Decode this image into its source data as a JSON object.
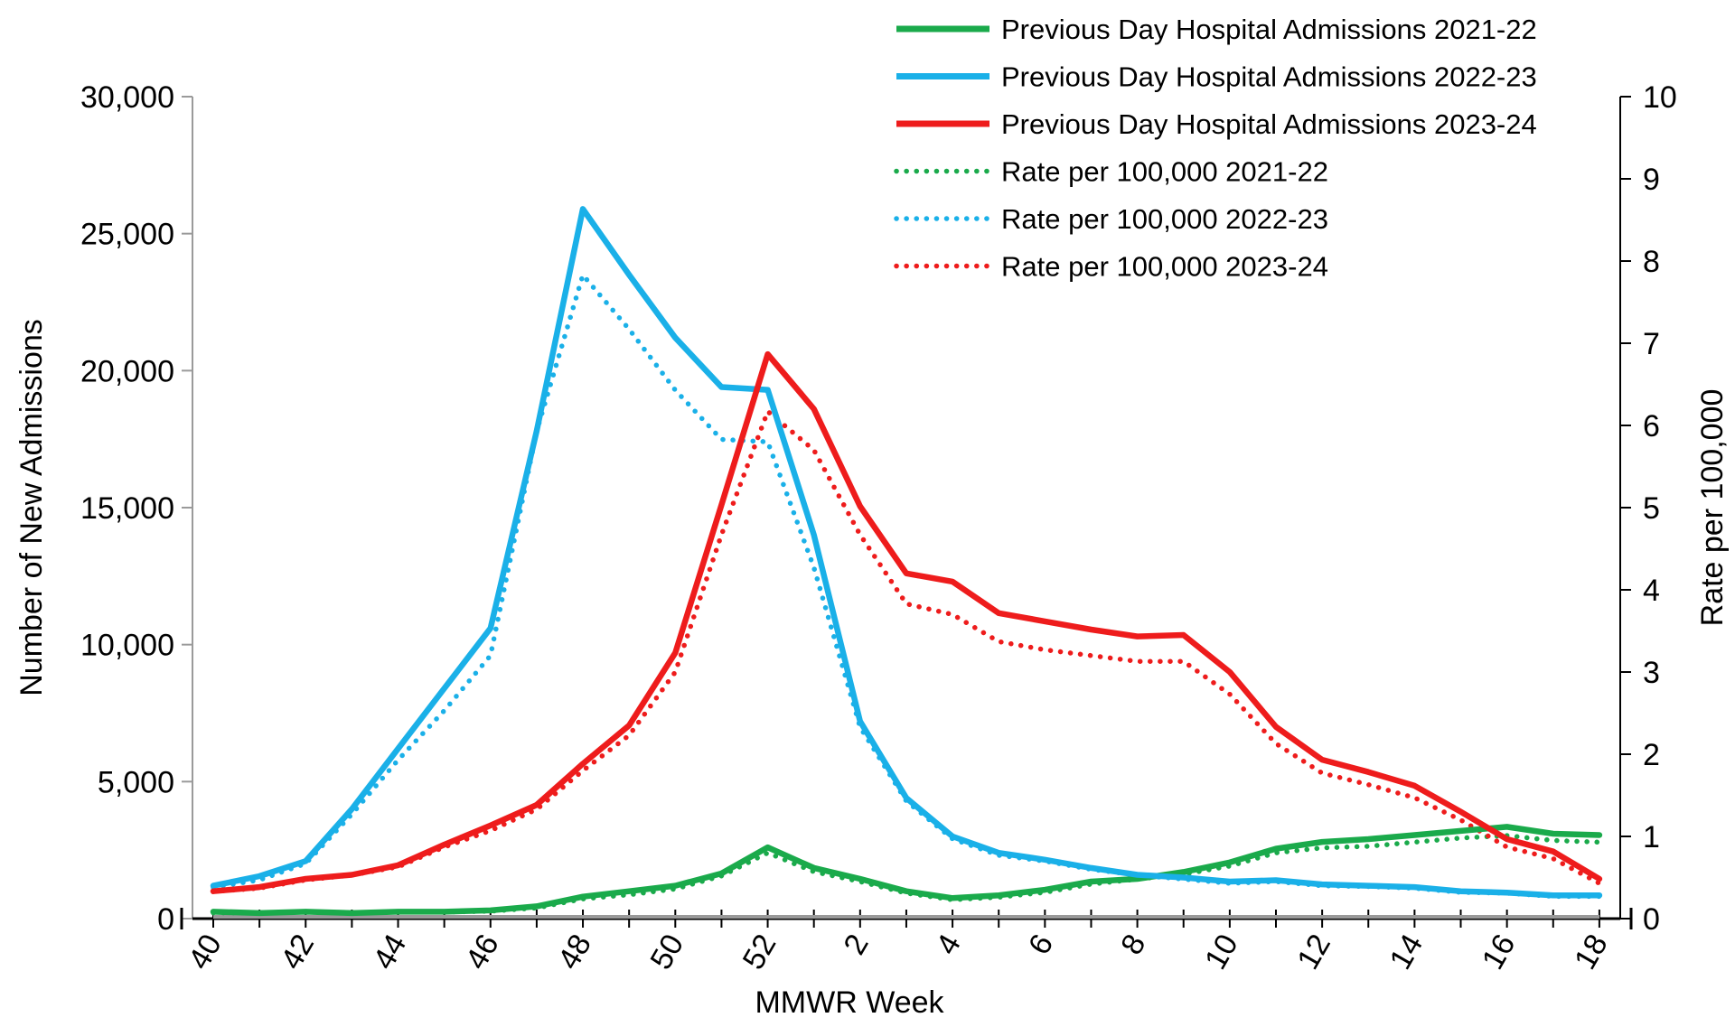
{
  "chart_data": {
    "type": "line",
    "xlabel": "MMWR Week",
    "ylabel": "Number of New Admissions",
    "y2label": "Rate per 100,000",
    "ylim": [
      0,
      30000
    ],
    "y2lim": [
      0,
      10
    ],
    "y_ticks": [
      "0",
      "5,000",
      "10,000",
      "15,000",
      "20,000",
      "25,000",
      "30,000"
    ],
    "y2_ticks": [
      "0",
      "1",
      "2",
      "3",
      "4",
      "5",
      "6",
      "7",
      "8",
      "9",
      "10"
    ],
    "x": [
      "40",
      "41",
      "42",
      "43",
      "44",
      "45",
      "46",
      "47",
      "48",
      "49",
      "50",
      "51",
      "52",
      "1",
      "2",
      "3",
      "4",
      "5",
      "6",
      "7",
      "8",
      "9",
      "10",
      "11",
      "12",
      "13",
      "14",
      "15",
      "16",
      "17",
      "18"
    ],
    "x_tick_labels": [
      "40",
      "42",
      "44",
      "46",
      "48",
      "50",
      "52",
      "2",
      "4",
      "6",
      "8",
      "10",
      "12",
      "14",
      "16",
      "18"
    ],
    "grid": false,
    "legend_position": "top-right",
    "series": [
      {
        "name": "Previous Day Hospital Admissions 2021-22",
        "axis": "left",
        "style": "solid",
        "color": "#1aaa4b",
        "values": [
          250,
          200,
          250,
          200,
          250,
          250,
          300,
          450,
          800,
          1000,
          1200,
          1650,
          2600,
          1850,
          1450,
          1000,
          750,
          850,
          1050,
          1350,
          1450,
          1700,
          2050,
          2550,
          2800,
          2900,
          3050,
          3200,
          3350,
          3100,
          3050
        ]
      },
      {
        "name": "Previous Day Hospital Admissions 2022-23",
        "axis": "left",
        "style": "solid",
        "color": "#1ab0e8",
        "values": [
          1200,
          1550,
          2100,
          4000,
          6200,
          8400,
          10600,
          17800,
          25900,
          23500,
          21200,
          19400,
          19300,
          14000,
          7200,
          4400,
          3000,
          2400,
          2150,
          1850,
          1600,
          1500,
          1350,
          1400,
          1250,
          1200,
          1150,
          1000,
          950,
          850,
          850
        ]
      },
      {
        "name": "Previous Day Hospital Admissions 2023-24",
        "axis": "left",
        "style": "solid",
        "color": "#ee1c1c",
        "values": [
          1000,
          1150,
          1450,
          1600,
          1950,
          2700,
          3400,
          4150,
          5650,
          7050,
          9700,
          15100,
          20600,
          18600,
          15050,
          12600,
          12300,
          11150,
          10850,
          10550,
          10300,
          10350,
          9000,
          7000,
          5800,
          5350,
          4850,
          3900,
          2900,
          2450,
          1450
        ]
      },
      {
        "name": "Rate per 100,000 2021-22",
        "axis": "right",
        "style": "dotted",
        "color": "#1aaa4b",
        "values": [
          0.07,
          0.07,
          0.08,
          0.07,
          0.08,
          0.08,
          0.09,
          0.13,
          0.24,
          0.29,
          0.36,
          0.52,
          0.8,
          0.57,
          0.45,
          0.31,
          0.23,
          0.26,
          0.32,
          0.42,
          0.48,
          0.54,
          0.64,
          0.8,
          0.86,
          0.88,
          0.93,
          0.98,
          1.01,
          0.95,
          0.93
        ]
      },
      {
        "name": "Rate per 100,000 2022-23",
        "axis": "right",
        "style": "dotted",
        "color": "#1ab0e8",
        "values": [
          0.38,
          0.47,
          0.67,
          1.27,
          1.93,
          2.53,
          3.2,
          5.93,
          7.83,
          7.17,
          6.43,
          5.83,
          5.8,
          4.27,
          2.33,
          1.43,
          0.97,
          0.77,
          0.7,
          0.6,
          0.53,
          0.48,
          0.43,
          0.45,
          0.4,
          0.39,
          0.37,
          0.32,
          0.31,
          0.27,
          0.27
        ]
      },
      {
        "name": "Rate per 100,000 2023-24",
        "axis": "right",
        "style": "dotted",
        "color": "#ee1c1c",
        "values": [
          0.33,
          0.37,
          0.47,
          0.53,
          0.63,
          0.87,
          1.07,
          1.33,
          1.8,
          2.23,
          3.0,
          4.67,
          6.17,
          5.7,
          4.67,
          3.83,
          3.7,
          3.37,
          3.27,
          3.2,
          3.13,
          3.13,
          2.73,
          2.13,
          1.77,
          1.63,
          1.47,
          1.2,
          0.87,
          0.73,
          0.43
        ]
      }
    ]
  }
}
